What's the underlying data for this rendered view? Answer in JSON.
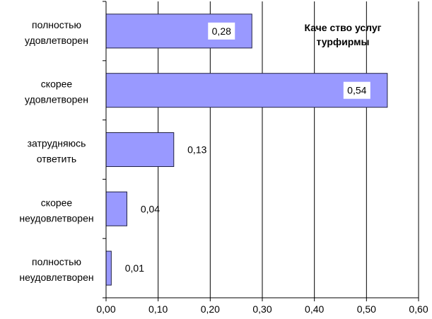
{
  "chart_data": {
    "type": "bar",
    "orientation": "horizontal",
    "title": "Качество услуг турфирмы",
    "title_lines": [
      "Каче ство услуг",
      "турфирмы"
    ],
    "categories": [
      "полностью удовлетворен",
      "скорее удовлетворен",
      "затрудняюсь ответить",
      "скорее неудовлетворен",
      "полностью неудовлетворен"
    ],
    "category_lines": [
      [
        "полностью",
        "удовлетворен"
      ],
      [
        "скорее",
        "удовлетворен"
      ],
      [
        "затрудняюсь",
        "ответить"
      ],
      [
        "скорее",
        "неудовлетворен"
      ],
      [
        "полностью",
        "неудовлетворен"
      ]
    ],
    "values": [
      0.28,
      0.54,
      0.13,
      0.04,
      0.01
    ],
    "data_labels": [
      "0,28",
      "0,54",
      "0,13",
      "0,04",
      "0,01"
    ],
    "xlim": [
      0,
      0.6
    ],
    "xticks": [
      "0,00",
      "0,10",
      "0,20",
      "0,30",
      "0,40",
      "0,50",
      "0,60"
    ],
    "grid": "vertical",
    "colors": {
      "bar_fill": "#9999ff",
      "bar_stroke": "#222244",
      "grid": "#000000"
    }
  }
}
